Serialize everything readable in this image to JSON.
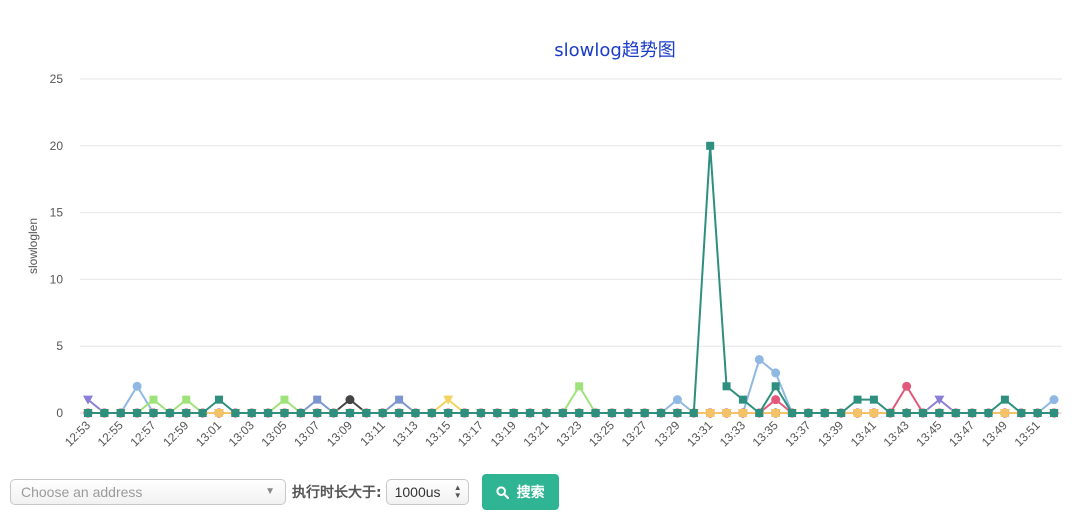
{
  "chart_data": {
    "type": "line",
    "title": "slowlog趋势图",
    "ylabel": "slowloglen",
    "xlabel": "",
    "ylim": [
      0,
      25
    ],
    "yticks": [
      0,
      5,
      10,
      15,
      20,
      25
    ],
    "grid": true,
    "x": [
      "12:53",
      "12:54",
      "12:55",
      "12:56",
      "12:57",
      "12:58",
      "12:59",
      "13:00",
      "13:01",
      "13:02",
      "13:03",
      "13:04",
      "13:05",
      "13:06",
      "13:07",
      "13:08",
      "13:09",
      "13:10",
      "13:11",
      "13:12",
      "13:13",
      "13:14",
      "13:15",
      "13:16",
      "13:17",
      "13:18",
      "13:19",
      "13:20",
      "13:21",
      "13:22",
      "13:23",
      "13:24",
      "13:25",
      "13:26",
      "13:27",
      "13:28",
      "13:29",
      "13:30",
      "13:31",
      "13:32",
      "13:33",
      "13:34",
      "13:35",
      "13:36",
      "13:37",
      "13:38",
      "13:39",
      "13:40",
      "13:41",
      "13:42",
      "13:43",
      "13:44",
      "13:45",
      "13:46",
      "13:47",
      "13:48",
      "13:49",
      "13:50",
      "13:51",
      "13:52"
    ],
    "xtick_labels": [
      "12:53",
      "12:55",
      "12:57",
      "12:59",
      "13:01",
      "13:03",
      "13:05",
      "13:07",
      "13:09",
      "13:11",
      "13:13",
      "13:15",
      "13:17",
      "13:19",
      "13:21",
      "13:23",
      "13:25",
      "13:27",
      "13:29",
      "13:31",
      "13:33",
      "13:35",
      "13:37",
      "13:39",
      "13:41",
      "13:43",
      "13:45",
      "13:47",
      "13:49",
      "13:51"
    ],
    "series": [
      {
        "color": "#8a7fd8",
        "marker": "triangle",
        "values": [
          1,
          0,
          0,
          0,
          0,
          0,
          0,
          0,
          0,
          0,
          0,
          0,
          0,
          0,
          0,
          0,
          0,
          0,
          0,
          0,
          0,
          0,
          0,
          0,
          0,
          0,
          0,
          0,
          0,
          0,
          0,
          0,
          0,
          0,
          0,
          0,
          0,
          0,
          0,
          0,
          0,
          0,
          0,
          0,
          0,
          0,
          0,
          0,
          0,
          0,
          0,
          0,
          1,
          0,
          0,
          0,
          0,
          0,
          0,
          0
        ]
      },
      {
        "color": "#8fb8e3",
        "marker": "circle",
        "values": [
          0,
          0,
          0,
          2,
          0,
          0,
          0,
          0,
          0,
          0,
          0,
          0,
          0,
          0,
          0,
          0,
          0,
          0,
          0,
          0,
          0,
          0,
          0,
          0,
          0,
          0,
          0,
          0,
          0,
          0,
          0,
          0,
          0,
          0,
          0,
          0,
          1,
          0,
          0,
          0,
          0,
          4,
          3,
          0,
          0,
          0,
          0,
          0,
          0,
          0,
          0,
          0,
          0,
          0,
          0,
          0,
          0,
          0,
          0,
          1
        ]
      },
      {
        "color": "#9ee37a",
        "marker": "square",
        "values": [
          0,
          0,
          0,
          0,
          1,
          0,
          1,
          0,
          0,
          0,
          0,
          0,
          1,
          0,
          0,
          0,
          0,
          0,
          0,
          0,
          0,
          0,
          0,
          0,
          0,
          0,
          0,
          0,
          0,
          0,
          2,
          0,
          0,
          0,
          0,
          0,
          0,
          0,
          0,
          0,
          0,
          0,
          0,
          0,
          0,
          0,
          0,
          0,
          0,
          0,
          0,
          0,
          0,
          0,
          0,
          0,
          0,
          0,
          0,
          0
        ]
      },
      {
        "color": "#7b96cf",
        "marker": "square",
        "values": [
          0,
          0,
          0,
          0,
          0,
          0,
          0,
          0,
          0,
          0,
          0,
          0,
          0,
          0,
          1,
          0,
          0,
          0,
          0,
          1,
          0,
          0,
          0,
          0,
          0,
          0,
          0,
          0,
          0,
          0,
          0,
          0,
          0,
          0,
          0,
          0,
          0,
          0,
          0,
          0,
          0,
          0,
          0,
          0,
          0,
          0,
          0,
          0,
          0,
          0,
          0,
          0,
          0,
          0,
          0,
          0,
          0,
          0,
          0,
          0
        ]
      },
      {
        "color": "#444444",
        "marker": "circle",
        "values": [
          0,
          0,
          0,
          0,
          0,
          0,
          0,
          0,
          0,
          0,
          0,
          0,
          0,
          0,
          0,
          0,
          1,
          0,
          0,
          0,
          0,
          0,
          0,
          0,
          0,
          0,
          0,
          0,
          0,
          0,
          0,
          0,
          0,
          0,
          0,
          0,
          0,
          0,
          0,
          0,
          0,
          0,
          0,
          0,
          0,
          0,
          0,
          0,
          0,
          0,
          0,
          0,
          0,
          0,
          0,
          0,
          0,
          0,
          0,
          0
        ]
      },
      {
        "color": "#f2d35e",
        "marker": "triangle",
        "values": [
          0,
          0,
          0,
          0,
          0,
          0,
          0,
          0,
          0,
          0,
          0,
          0,
          0,
          0,
          0,
          0,
          0,
          0,
          0,
          0,
          0,
          0,
          1,
          0,
          0,
          0,
          0,
          0,
          0,
          0,
          0,
          0,
          0,
          0,
          0,
          0,
          0,
          0,
          0,
          0,
          0,
          0,
          0,
          0,
          0,
          0,
          0,
          0,
          0,
          0,
          0,
          0,
          0,
          0,
          0,
          0,
          0,
          0,
          0,
          0
        ]
      },
      {
        "color": "#e2587a",
        "marker": "circle",
        "values": [
          0,
          0,
          0,
          0,
          0,
          0,
          0,
          0,
          0,
          0,
          0,
          0,
          0,
          0,
          0,
          0,
          0,
          0,
          0,
          0,
          0,
          0,
          0,
          0,
          0,
          0,
          0,
          0,
          0,
          0,
          0,
          0,
          0,
          0,
          0,
          0,
          0,
          0,
          0,
          0,
          0,
          0,
          1,
          0,
          0,
          0,
          0,
          0,
          0,
          0,
          2,
          0,
          0,
          0,
          0,
          0,
          0,
          0,
          0,
          0
        ]
      },
      {
        "color": "#f5c266",
        "marker": "square",
        "values": [
          0,
          0,
          0,
          0,
          0,
          0,
          0,
          0,
          0,
          0,
          0,
          0,
          0,
          0,
          0,
          0,
          0,
          0,
          0,
          0,
          0,
          0,
          0,
          0,
          0,
          0,
          0,
          0,
          0,
          0,
          0,
          0,
          0,
          0,
          0,
          0,
          0,
          0,
          0,
          0,
          0,
          0,
          0,
          0,
          0,
          0,
          0,
          0,
          0,
          0,
          0,
          0,
          0,
          0,
          0,
          0,
          0,
          0,
          0,
          0
        ]
      },
      {
        "color": "#2e8f7e",
        "marker": "square",
        "values": [
          0,
          0,
          0,
          0,
          0,
          0,
          0,
          0,
          1,
          0,
          0,
          0,
          0,
          0,
          0,
          0,
          0,
          0,
          0,
          0,
          0,
          0,
          0,
          0,
          0,
          0,
          0,
          0,
          0,
          0,
          0,
          0,
          0,
          0,
          0,
          0,
          0,
          0,
          20,
          2,
          1,
          0,
          2,
          0,
          0,
          0,
          0,
          1,
          1,
          0,
          0,
          0,
          0,
          0,
          0,
          0,
          1,
          0,
          0,
          0
        ]
      }
    ]
  },
  "controls": {
    "address_placeholder": "Choose an address",
    "duration_label": "执行时长大于:",
    "duration_value": "1000us",
    "search_label": "搜索"
  }
}
